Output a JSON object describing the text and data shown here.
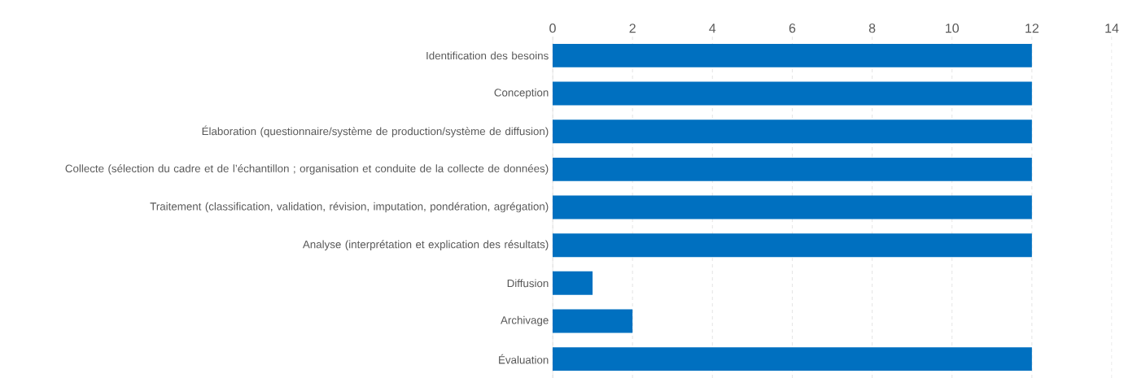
{
  "chart_data": {
    "type": "bar",
    "orientation": "horizontal",
    "categories": [
      "Identification des besoins",
      "Conception",
      "Élaboration (questionnaire/système de production/système de diffusion)",
      "Collecte (sélection du cadre et de l’échantillon ; organisation et conduite de la collecte de données)",
      "Traitement (classification, validation, révision, imputation, pondération, agrégation)",
      "Analyse (interprétation et explication des résultats)",
      "Diffusion",
      "Archivage",
      "Évaluation"
    ],
    "values": [
      12,
      12,
      12,
      12,
      12,
      12,
      1,
      2,
      12
    ],
    "color": "#0070c0",
    "xlim": [
      0,
      14
    ],
    "xticks": [
      0,
      2,
      4,
      6,
      8,
      10,
      12,
      14
    ],
    "grid": "x"
  }
}
